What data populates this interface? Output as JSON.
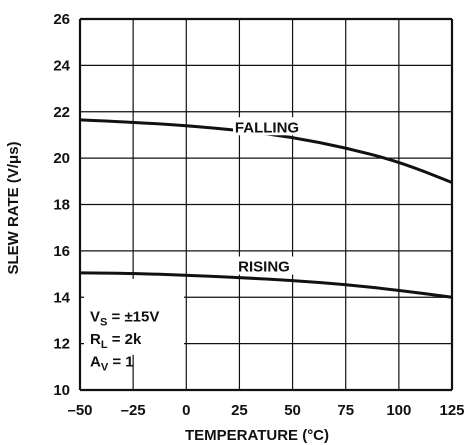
{
  "chart_data": {
    "type": "line",
    "xlabel": "TEMPERATURE (°C)",
    "ylabel": "SLEW RATE (V/μs)",
    "xlim": [
      -50,
      125
    ],
    "ylim": [
      10,
      26
    ],
    "x_ticks": [
      "–50",
      "–25",
      "0",
      "25",
      "50",
      "75",
      "100",
      "125"
    ],
    "y_ticks": [
      "10",
      "12",
      "14",
      "16",
      "18",
      "20",
      "22",
      "24",
      "26"
    ],
    "grid": true,
    "series": [
      {
        "name": "FALLING",
        "x": [
          -50,
          -25,
          0,
          25,
          50,
          75,
          100,
          125
        ],
        "y": [
          21.65,
          21.55,
          21.4,
          21.2,
          20.9,
          20.45,
          19.85,
          18.95
        ]
      },
      {
        "name": "RISING",
        "x": [
          -50,
          -25,
          0,
          25,
          50,
          75,
          100,
          125
        ],
        "y": [
          15.05,
          15.03,
          14.95,
          14.85,
          14.72,
          14.55,
          14.3,
          14.0
        ]
      }
    ],
    "conditions": [
      {
        "main": "V",
        "sub": "S",
        "rest": " = ±15V"
      },
      {
        "main": "R",
        "sub": "L",
        "rest": " = 2k"
      },
      {
        "main": "A",
        "sub": "V",
        "rest": " = 1"
      }
    ],
    "line_color": "#111111",
    "grid_color": "#111111"
  }
}
